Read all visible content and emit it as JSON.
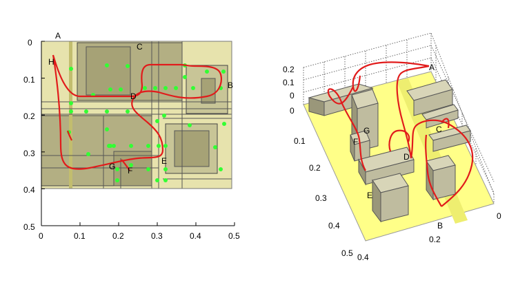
{
  "left_plot": {
    "x_ticks": [
      "0",
      "0.1",
      "0.2",
      "0.3",
      "0.4",
      "0.5"
    ],
    "y_ticks": [
      "0",
      "0.1",
      "0.2",
      "0.3",
      "0.4",
      "0.5"
    ],
    "labels": [
      "A",
      "H",
      "C",
      "D",
      "B",
      "G",
      "F",
      "E"
    ]
  },
  "right_plot": {
    "z_ticks": [
      "0.2",
      "0.1",
      "0",
      "0"
    ],
    "y_ticks": [
      "0.1",
      "0.2",
      "0.3",
      "0.4",
      "0.5"
    ],
    "x_ticks": [
      "0.2",
      "0.4"
    ],
    "corner_label": "0",
    "labels": [
      "A",
      "C",
      "D",
      "G",
      "F",
      "E",
      "B"
    ]
  },
  "colors": {
    "floor_left": "#e7e3ad",
    "block": "#b3af83",
    "path": "#e11b1b",
    "marker": "#33ff33",
    "floor_right": "#ffff88"
  }
}
